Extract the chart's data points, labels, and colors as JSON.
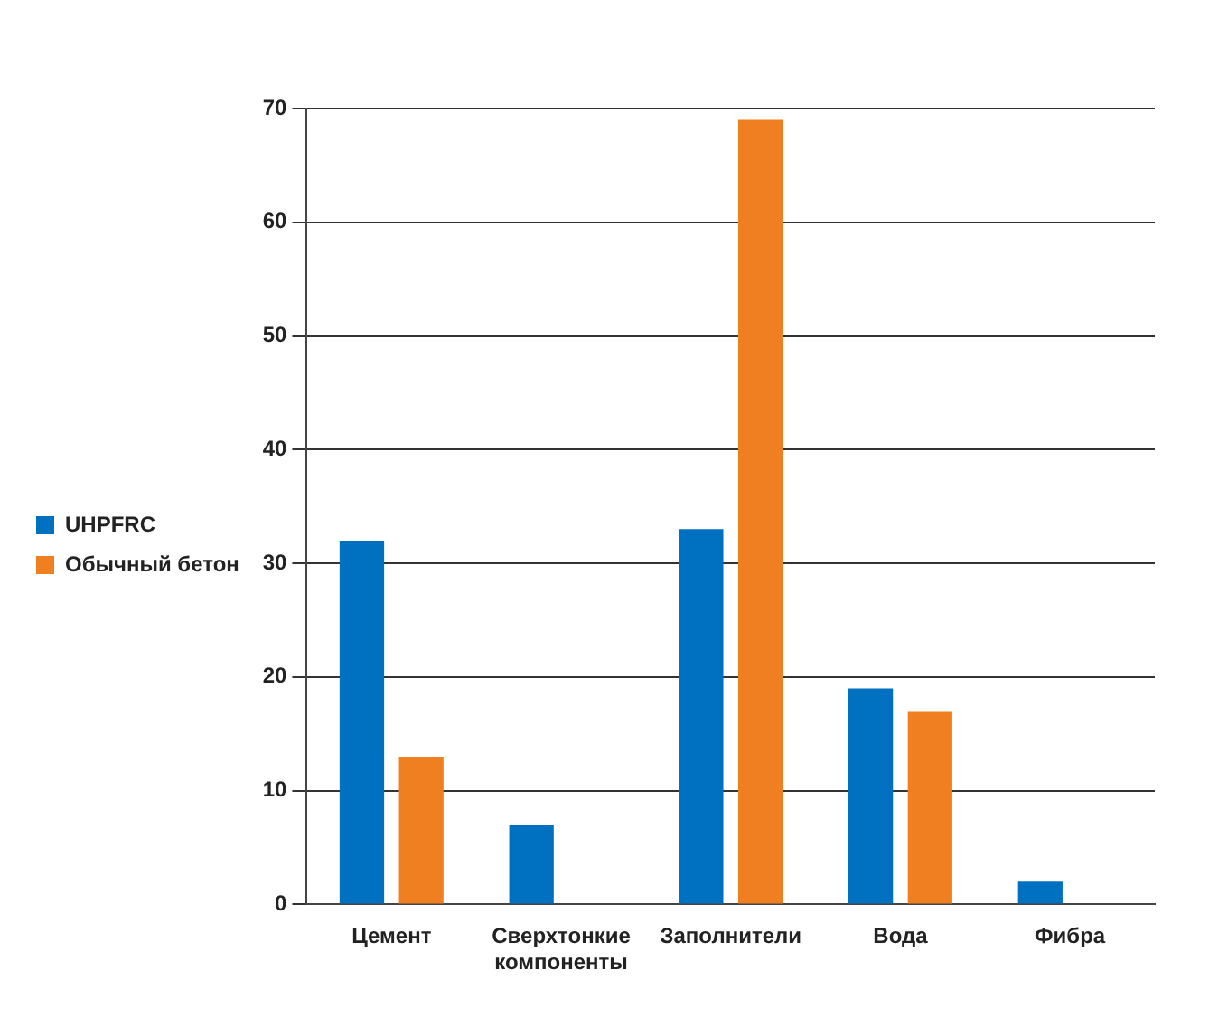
{
  "chart_data": {
    "type": "bar",
    "categories": [
      "Цемент",
      "Сверхтонкие компоненты",
      "Заполнители",
      "Вода",
      "Фибра"
    ],
    "series": [
      {
        "name": "UHPFRC",
        "color": "#0070c0",
        "values": [
          32,
          7,
          33,
          19,
          2
        ]
      },
      {
        "name": "Обычный бетон",
        "color": "#f07f22",
        "values": [
          13,
          0,
          69,
          17,
          0
        ]
      }
    ],
    "ylim": [
      0,
      70
    ],
    "yticks": [
      0,
      10,
      20,
      30,
      40,
      50,
      60,
      70
    ],
    "grid": "y",
    "legend": "left"
  }
}
